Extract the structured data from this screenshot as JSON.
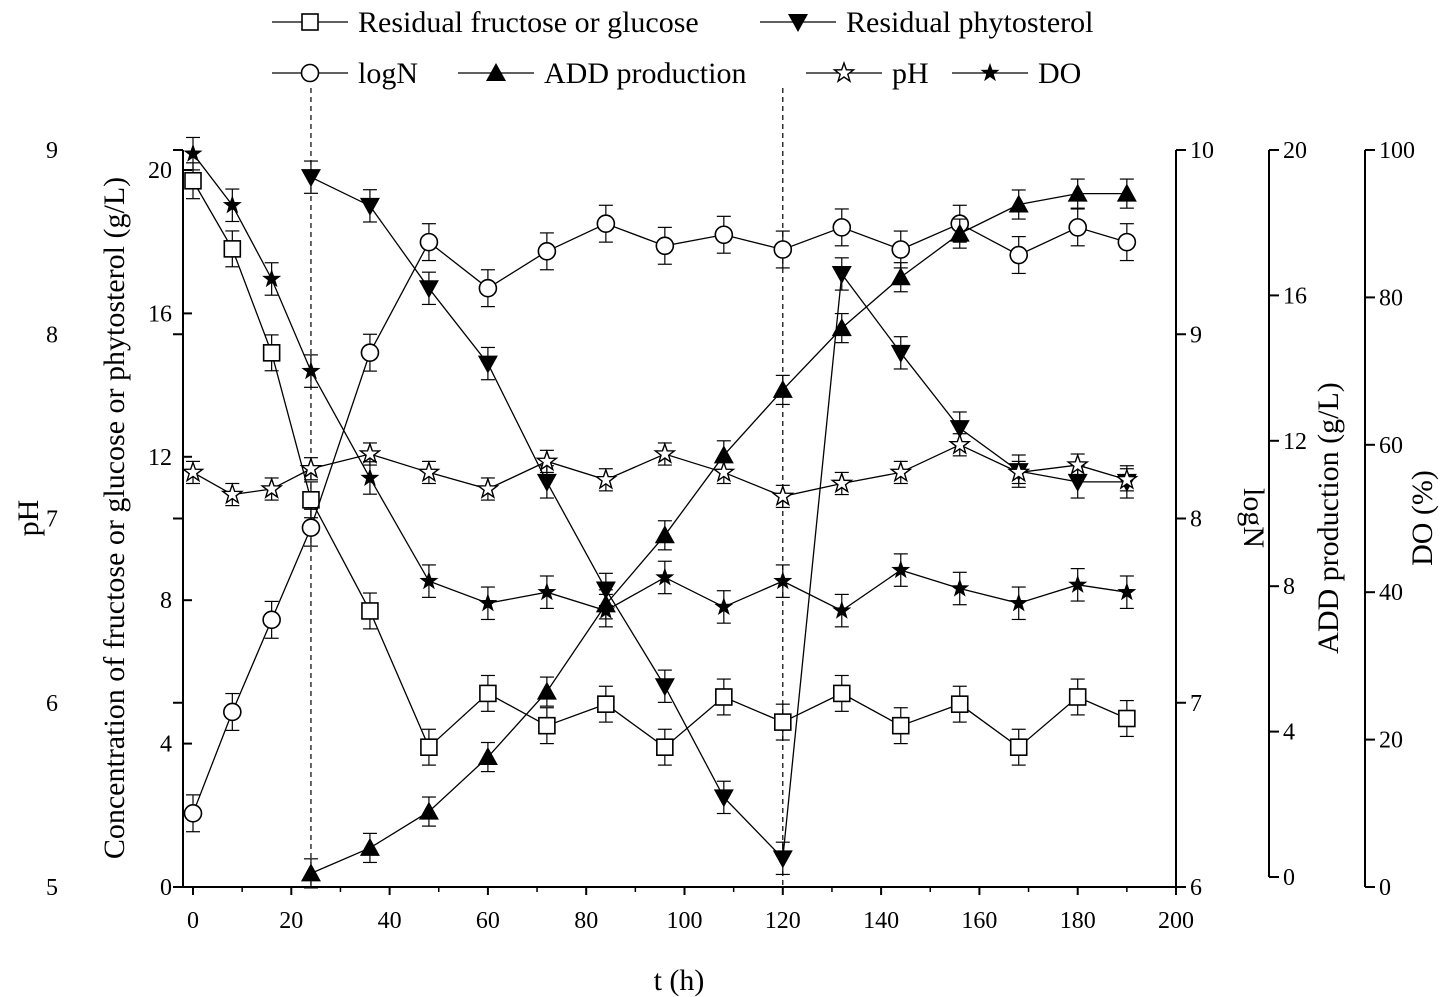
{
  "chart_data": {
    "type": "line",
    "xlabel": "t (h)",
    "xlim": [
      0,
      200
    ],
    "xticks": [
      0,
      20,
      40,
      60,
      80,
      100,
      120,
      140,
      160,
      180,
      200
    ],
    "axes": {
      "ph": {
        "label": "pH",
        "range": [
          5,
          9
        ],
        "ticks": [
          5,
          6,
          7,
          8,
          9
        ]
      },
      "conc": {
        "label": "Concentration of fructose or glucose or phytosterol (g/L)",
        "range": [
          0,
          20
        ],
        "ticks": [
          0,
          4,
          8,
          12,
          16,
          20
        ]
      },
      "logn": {
        "label": "logN",
        "range": [
          6,
          10
        ],
        "ticks": [
          6,
          7,
          8,
          9,
          10
        ]
      },
      "add": {
        "label": "ADD production (g/L)",
        "range": [
          0,
          20
        ],
        "ticks": [
          0,
          4,
          8,
          12,
          16,
          20
        ]
      },
      "do": {
        "label": "DO (%)",
        "range": [
          0,
          100
        ],
        "ticks": [
          0,
          20,
          40,
          60,
          80,
          100
        ]
      }
    },
    "vlines": [
      24,
      120
    ],
    "series": [
      {
        "name": "Residual fructose or glucose",
        "axis": "conc",
        "marker": "square-open",
        "x": [
          0,
          8,
          16,
          24,
          36,
          48,
          60,
          72,
          84,
          96,
          108,
          120,
          132,
          144,
          156,
          168,
          180,
          190
        ],
        "y": [
          19.7,
          17.8,
          14.9,
          10.8,
          7.7,
          3.9,
          5.4,
          4.5,
          5.1,
          3.9,
          5.3,
          4.6,
          5.4,
          4.5,
          5.1,
          3.9,
          5.3,
          4.7
        ],
        "err": 0.5
      },
      {
        "name": "Residual phytosterol",
        "axis": "conc",
        "marker": "triangle-down-filled",
        "x": [
          24,
          36,
          48,
          60,
          72,
          84,
          96,
          108,
          120,
          132,
          144,
          156,
          168,
          180,
          190
        ],
        "y": [
          19.8,
          19.0,
          16.7,
          14.6,
          11.3,
          8.3,
          5.6,
          2.5,
          0.8,
          17.1,
          14.9,
          12.8,
          11.6,
          11.3,
          11.3
        ],
        "err": 0.45
      },
      {
        "name": "logN",
        "axis": "logn",
        "marker": "circle-open",
        "x": [
          0,
          8,
          16,
          24,
          36,
          48,
          60,
          72,
          84,
          96,
          108,
          120,
          132,
          144,
          156,
          168,
          180,
          190
        ],
        "y": [
          6.4,
          6.95,
          7.45,
          7.95,
          8.9,
          9.5,
          9.25,
          9.45,
          9.6,
          9.48,
          9.54,
          9.46,
          9.58,
          9.46,
          9.6,
          9.43,
          9.58,
          9.5
        ],
        "err": 0.1
      },
      {
        "name": "ADD production",
        "axis": "add",
        "marker": "triangle-up-filled",
        "x": [
          24,
          36,
          48,
          60,
          72,
          84,
          96,
          108,
          120,
          132,
          144,
          156,
          168,
          180,
          190
        ],
        "y": [
          0.1,
          0.8,
          1.8,
          3.3,
          5.1,
          7.5,
          9.4,
          11.6,
          13.4,
          15.1,
          16.5,
          17.7,
          18.5,
          18.8,
          18.8
        ],
        "err": 0.4
      },
      {
        "name": "pH",
        "axis": "ph",
        "marker": "star-open",
        "x": [
          0,
          8,
          16,
          24,
          36,
          48,
          60,
          72,
          84,
          96,
          108,
          120,
          132,
          144,
          156,
          168,
          180,
          190
        ],
        "y": [
          7.25,
          7.13,
          7.16,
          7.27,
          7.35,
          7.25,
          7.16,
          7.31,
          7.21,
          7.35,
          7.25,
          7.12,
          7.19,
          7.25,
          7.4,
          7.25,
          7.29,
          7.21
        ],
        "err": 0.06
      },
      {
        "name": "DO",
        "axis": "do",
        "marker": "star-filled",
        "x": [
          0,
          8,
          16,
          24,
          36,
          48,
          60,
          72,
          84,
          96,
          108,
          120,
          132,
          144,
          156,
          168,
          180,
          190
        ],
        "y": [
          99.5,
          92.5,
          82.5,
          70.0,
          55.5,
          41.5,
          38.5,
          40.0,
          37.5,
          42.0,
          38.0,
          41.5,
          37.5,
          43.0,
          40.5,
          38.5,
          41.0,
          40.0
        ],
        "err": 2.2
      }
    ],
    "legend_placement": "top",
    "grid": false
  }
}
